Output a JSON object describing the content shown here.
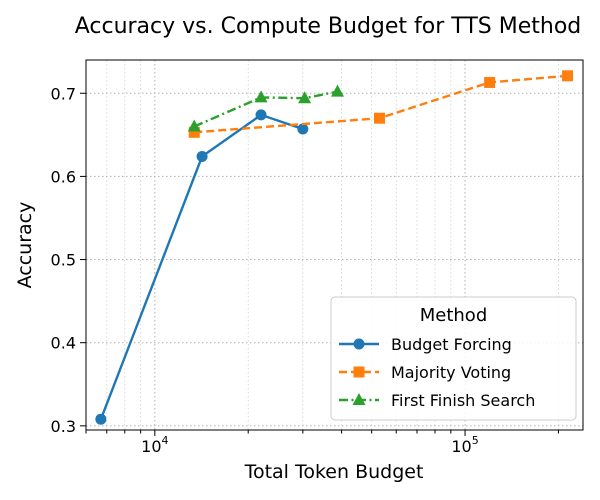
{
  "chart_data": {
    "type": "line",
    "title": "Accuracy vs. Compute Budget for TTS Method",
    "xlabel": "Total Token Budget",
    "ylabel": "Accuracy",
    "xscale": "log",
    "xlim": [
      6000,
      240000
    ],
    "ylim": [
      0.295,
      0.74
    ],
    "xticks": [
      {
        "value": 10000,
        "base": "10",
        "exp": "4"
      },
      {
        "value": 100000,
        "base": "10",
        "exp": "5"
      }
    ],
    "yticks": [
      {
        "value": 0.3,
        "label": "0.3"
      },
      {
        "value": 0.4,
        "label": "0.4"
      },
      {
        "value": 0.5,
        "label": "0.5"
      },
      {
        "value": 0.6,
        "label": "0.6"
      },
      {
        "value": 0.7,
        "label": "0.7"
      }
    ],
    "grid": true,
    "grid_style": "dotted",
    "legend": {
      "title": "Method",
      "placement": "lower-right"
    },
    "series": [
      {
        "name": "Budget Forcing",
        "color": "#1f77b4",
        "marker": "circle",
        "linestyle": "solid",
        "x": [
          6700,
          14200,
          22000,
          30000
        ],
        "y": [
          0.308,
          0.624,
          0.674,
          0.657
        ]
      },
      {
        "name": "Majority Voting",
        "color": "#ff7f0e",
        "marker": "square",
        "linestyle": "dashed",
        "x": [
          13400,
          53000,
          120000,
          214000
        ],
        "y": [
          0.653,
          0.67,
          0.713,
          0.721
        ]
      },
      {
        "name": "First Finish Search",
        "color": "#2ca02c",
        "marker": "triangle",
        "linestyle": "dashdot",
        "x": [
          13400,
          22000,
          30400,
          38800
        ],
        "y": [
          0.66,
          0.695,
          0.694,
          0.702
        ]
      }
    ]
  }
}
